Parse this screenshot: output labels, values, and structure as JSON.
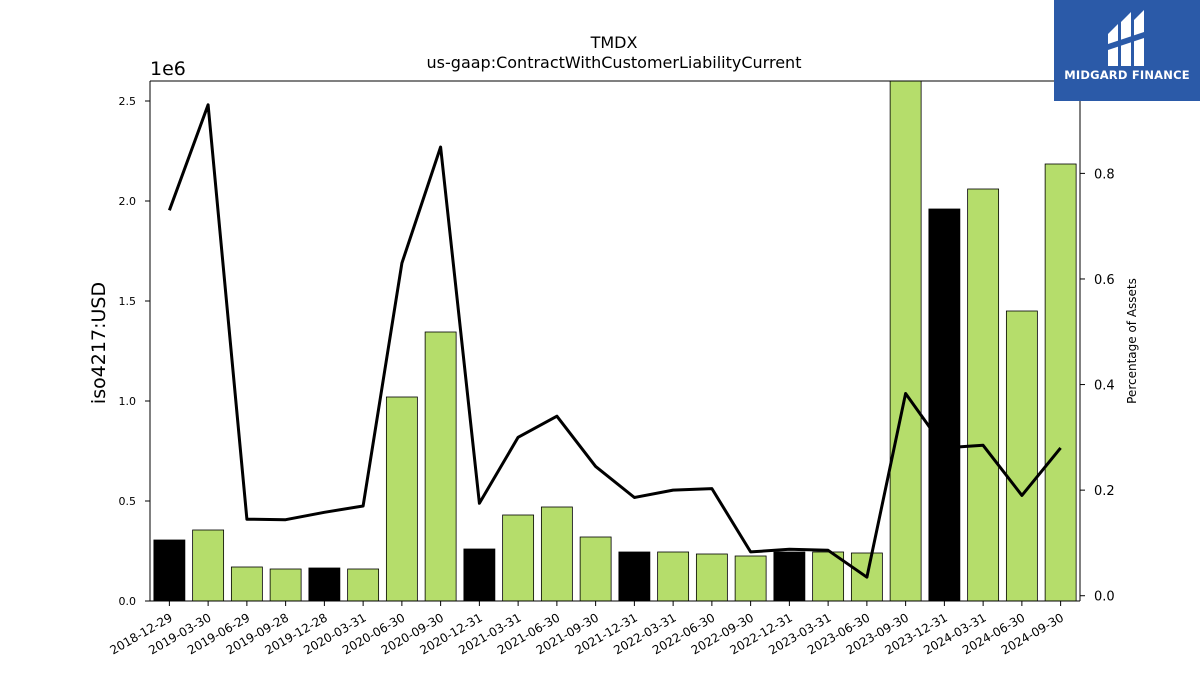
{
  "chart_data": {
    "type": "bar",
    "title": "TMDX",
    "subtitle": "us-gaap:ContractWithCustomerLiabilityCurrent",
    "ylabel": "iso4217:USD",
    "y_offset_label": "1e6",
    "y2label": "Percentage of Assets",
    "ylim": [
      0,
      2600000
    ],
    "y2lim": [
      -0.01,
      0.975
    ],
    "y_ticks": [
      "0.0",
      "0.5",
      "1.0",
      "1.5",
      "2.0",
      "2.5"
    ],
    "y_tick_values": [
      0,
      500000,
      1000000,
      1500000,
      2000000,
      2500000
    ],
    "y2_ticks": [
      "0.0",
      "0.2",
      "0.4",
      "0.6",
      "0.8"
    ],
    "y2_tick_values": [
      0,
      0.2,
      0.4,
      0.6,
      0.8
    ],
    "categories": [
      "2018-12-29",
      "2019-03-30",
      "2019-06-29",
      "2019-09-28",
      "2019-12-28",
      "2020-03-31",
      "2020-06-30",
      "2020-09-30",
      "2020-12-31",
      "2021-03-31",
      "2021-06-30",
      "2021-09-30",
      "2021-12-31",
      "2022-03-31",
      "2022-06-30",
      "2022-09-30",
      "2022-12-31",
      "2023-03-31",
      "2023-06-30",
      "2023-09-30",
      "2023-12-31",
      "2024-03-31",
      "2024-06-30",
      "2024-09-30"
    ],
    "series": [
      {
        "type": "bar",
        "values": [
          305000,
          355000,
          170000,
          160000,
          165000,
          160000,
          1020000,
          1345000,
          260000,
          430000,
          470000,
          320000,
          245000,
          245000,
          235000,
          225000,
          245000,
          245000,
          240000,
          2620000,
          1960000,
          2060000,
          1450000,
          2185000
        ]
      },
      {
        "type": "line",
        "axis": "right",
        "values": [
          0.73,
          0.93,
          0.145,
          0.144,
          0.158,
          0.17,
          0.63,
          0.85,
          0.175,
          0.3,
          0.34,
          0.245,
          0.186,
          0.2,
          0.203,
          0.083,
          0.088,
          0.086,
          0.035,
          0.383,
          0.28,
          0.285,
          0.19,
          0.28
        ]
      }
    ],
    "bar_colors": {
      "annual": "#000000",
      "quarterly": "#b5dd6b"
    },
    "annual_bar_indices": [
      0,
      4,
      8,
      12,
      16,
      20
    ],
    "line_color": "#000000",
    "grid": false
  },
  "logo": {
    "text": "MIDGARD FINANCE",
    "color": "#2b5aa8"
  }
}
